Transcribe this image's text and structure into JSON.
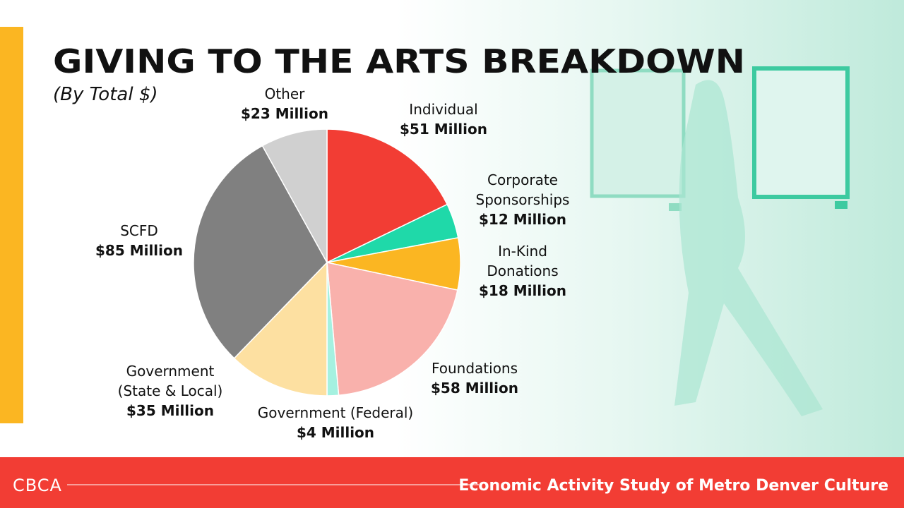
{
  "chart_data": {
    "type": "pie",
    "title": "GIVING TO THE ARTS BREAKDOWN",
    "subtitle": "(By Total $)",
    "categories": [
      "Individual",
      "Corporate Sponsorships",
      "In-Kind Donations",
      "Foundations",
      "Government (Federal)",
      "Government (State & Local)",
      "SCFD",
      "Other"
    ],
    "values": [
      51,
      12,
      18,
      58,
      4,
      35,
      85,
      23
    ],
    "value_labels": [
      "$51 Million",
      "$12 Million",
      "$18 Million",
      "$58 Million",
      "$4 Million",
      "$35 Million",
      "$85 Million",
      "$23 Million"
    ],
    "colors": [
      "#f23d34",
      "#1fd9a9",
      "#fbb622",
      "#f9b1ac",
      "#a5f1e0",
      "#fde0a1",
      "#808080",
      "#d0d0d0"
    ]
  },
  "footer": {
    "logo": "CBCA",
    "text": "Economic Activity Study of Metro Denver Culture"
  }
}
